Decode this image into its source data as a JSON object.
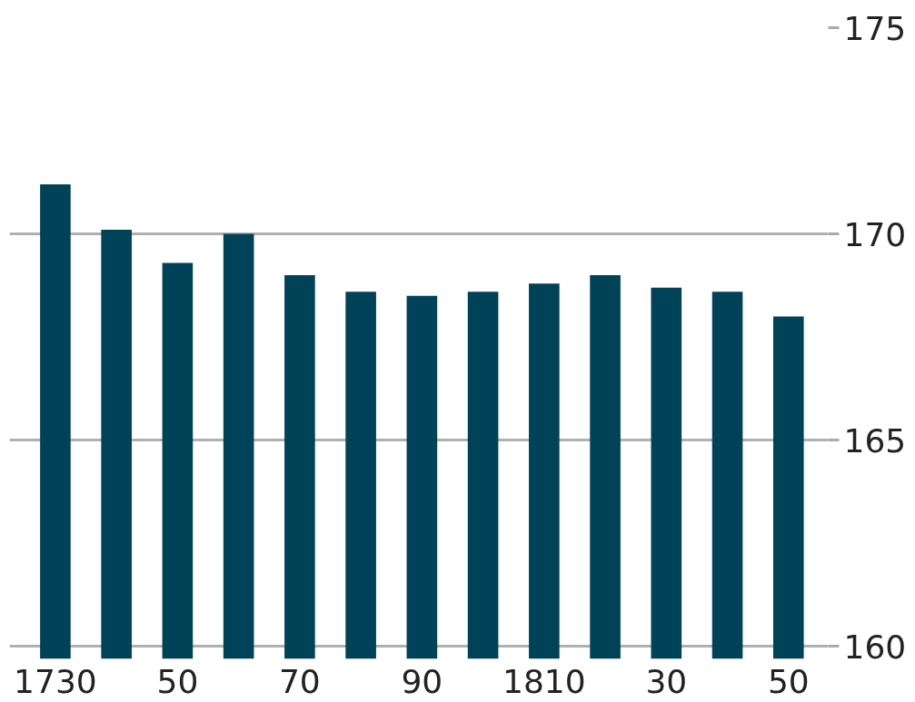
{
  "chart_data": {
    "type": "bar",
    "categories": [
      "1730",
      null,
      "50",
      null,
      "70",
      null,
      "90",
      null,
      "1810",
      null,
      "30",
      null,
      "50"
    ],
    "values": [
      171.2,
      170.1,
      169.3,
      170.0,
      169.0,
      168.6,
      168.5,
      168.6,
      168.8,
      169.0,
      168.7,
      168.6,
      168.0
    ],
    "color": "#004358",
    "ylim": [
      159.7,
      175
    ],
    "yticks": [
      160,
      165,
      170,
      175
    ],
    "grid": "y"
  }
}
